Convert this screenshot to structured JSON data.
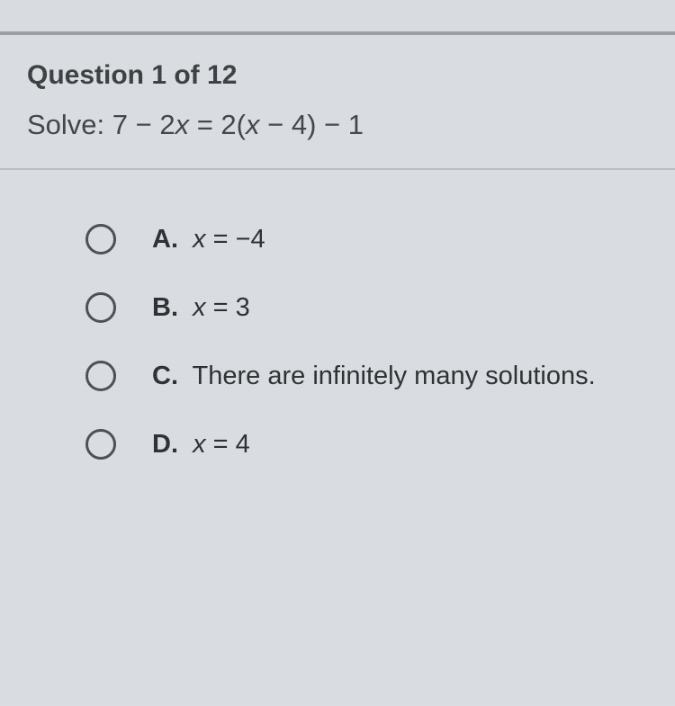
{
  "header": {
    "question_counter": "Question 1 of 12",
    "prompt_prefix": "Solve: ",
    "equation_parts": {
      "p1": "7 − 2",
      "p2": "x",
      "p3": " = 2(",
      "p4": "x",
      "p5": " − 4) − 1"
    }
  },
  "options": [
    {
      "letter": "A.",
      "text_prefix": "",
      "italic": "x",
      "text_suffix": " = −4"
    },
    {
      "letter": "B.",
      "text_prefix": "",
      "italic": "x",
      "text_suffix": " = 3"
    },
    {
      "letter": "C.",
      "text_prefix": "There are infinitely many solutions.",
      "italic": "",
      "text_suffix": ""
    },
    {
      "letter": "D.",
      "text_prefix": "",
      "italic": "x",
      "text_suffix": " = 4"
    }
  ],
  "colors": {
    "background": "#d8dce0",
    "text_dark": "#2a2c2e",
    "text_header": "#3a3c3e",
    "divider": "#b8bcc0",
    "top_border": "#9a9ea0",
    "radio_border": "#4a4c4e"
  }
}
